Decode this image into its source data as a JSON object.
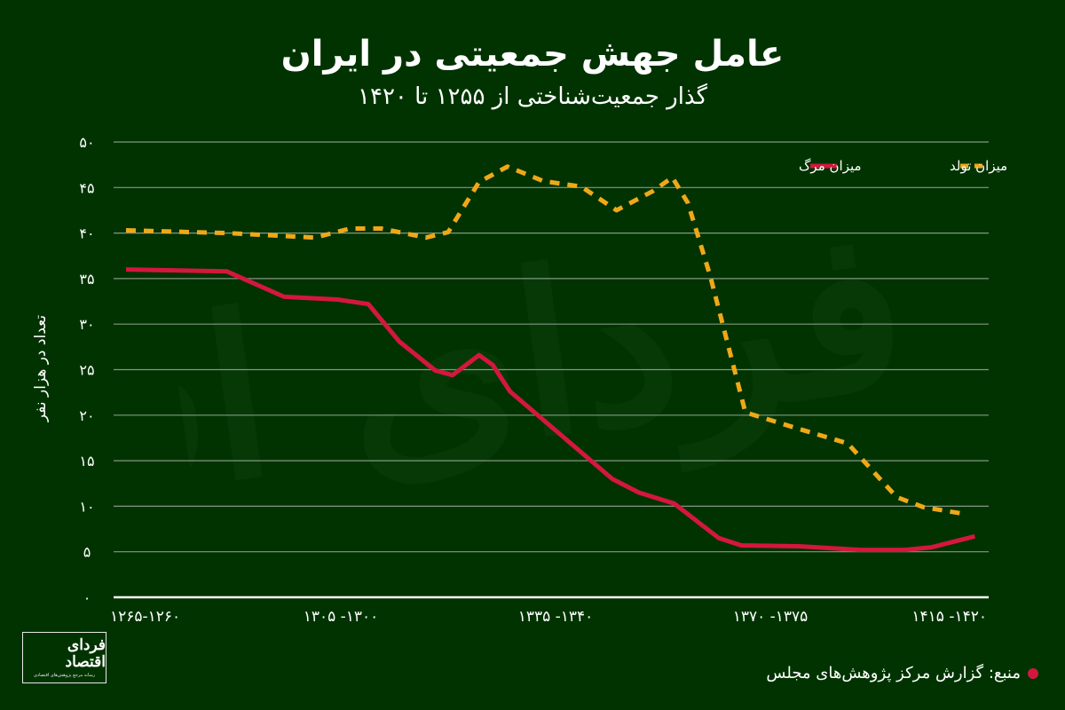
{
  "header": {
    "title": "عامل جهش جمعیتی در ایران",
    "subtitle": "گذار جمعیت‌شناختی از ۱۲۵۵ تا ۱۴۲۰"
  },
  "watermark": "فردای اقتصاد",
  "logo": {
    "name": "فردای اقتصاد",
    "tagline": "رسانه مرجع پژوهش‌های اقتصادی"
  },
  "source": {
    "text": "منبع: گزارش مرکز پژوهش‌های مجلس"
  },
  "colors": {
    "background": "#013301",
    "birth": "#f0a818",
    "death": "#d4173e",
    "grid": "#9aa89a",
    "axis": "#ffffff"
  },
  "chart_data": {
    "type": "line",
    "title": "عامل جهش جمعیتی در ایران",
    "subtitle": "گذار جمعیت‌شناختی از ۱۲۵۵ تا ۱۴۲۰",
    "xlabel": "",
    "ylabel": "تعداد در هزار نفر",
    "ylim": [
      0,
      50
    ],
    "yticks": [
      0,
      5,
      10,
      15,
      20,
      25,
      30,
      35,
      40,
      45,
      50
    ],
    "ytick_labels": [
      "۰",
      "۵",
      "۱۰",
      "۱۵",
      "۲۰",
      "۲۵",
      "۳۰",
      "۳۵",
      "۴۰",
      "۴۵",
      "۵۰"
    ],
    "xtick_labels": [
      "۱۲۶۵-۱۲۶۰",
      "۱۳۰۵ -۱۳۰۰",
      "۱۳۳۵ -۱۳۴۰",
      "۱۳۷۰ -۱۳۷۵",
      "۱۴۱۵ -۱۴۲۰"
    ],
    "xtick_positions": [
      0.0,
      0.25,
      0.5,
      0.75,
      1.0
    ],
    "grid": true,
    "legend_position": "top-right",
    "series": [
      {
        "name": "میزان تولد",
        "style": "dashed",
        "color": "#f0a818",
        "x": [
          0.0,
          0.117,
          0.22,
          0.261,
          0.297,
          0.349,
          0.375,
          0.411,
          0.444,
          0.486,
          0.53,
          0.571,
          0.613,
          0.636,
          0.654,
          0.68,
          0.721,
          0.783,
          0.84,
          0.897,
          0.928,
          0.979
        ],
        "values": [
          40.3,
          40.0,
          39.5,
          40.5,
          40.5,
          39.5,
          40.1,
          45.6,
          47.3,
          45.7,
          45.1,
          42.5,
          44.6,
          46.1,
          43.3,
          35.3,
          20.3,
          18.5,
          16.9,
          11.0,
          9.9,
          9.1
        ]
      },
      {
        "name": "میزان مرگ",
        "style": "solid",
        "color": "#d4173e",
        "x": [
          0.0,
          0.117,
          0.184,
          0.246,
          0.282,
          0.318,
          0.36,
          0.38,
          0.411,
          0.427,
          0.447,
          0.566,
          0.597,
          0.638,
          0.69,
          0.716,
          0.783,
          0.855,
          0.907,
          0.938,
          0.988
        ],
        "values": [
          36.0,
          35.8,
          33.0,
          32.7,
          32.2,
          28.1,
          24.9,
          24.4,
          26.6,
          25.5,
          22.6,
          13.0,
          11.5,
          10.3,
          6.5,
          5.7,
          5.6,
          5.2,
          5.2,
          5.5,
          6.7
        ]
      }
    ]
  }
}
